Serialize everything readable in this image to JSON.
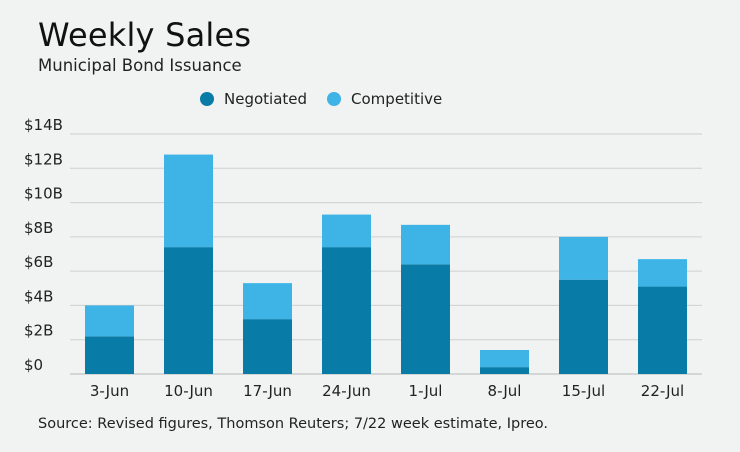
{
  "chart_data": {
    "type": "bar",
    "stacked": true,
    "title": "Weekly Sales",
    "subtitle": "Municipal Bond Issuance",
    "categories": [
      "3-Jun",
      "10-Jun",
      "17-Jun",
      "24-Jun",
      "1-Jul",
      "8-Jul",
      "15-Jul",
      "22-Jul"
    ],
    "series": [
      {
        "name": "Negotiated",
        "color": "#087ba7",
        "values": [
          2.2,
          7.4,
          3.2,
          7.4,
          6.4,
          0.4,
          5.5,
          5.1
        ]
      },
      {
        "name": "Competitive",
        "color": "#3db3e6",
        "values": [
          1.8,
          5.4,
          2.1,
          1.9,
          2.3,
          1.0,
          2.5,
          1.6
        ]
      }
    ],
    "ylim": [
      0,
      14
    ],
    "yticks": [
      0,
      2,
      4,
      6,
      8,
      10,
      12,
      14
    ],
    "ytick_labels": [
      "$0",
      "$2B",
      "$4B",
      "$6B",
      "$8B",
      "$10B",
      "$12B",
      "$14B"
    ],
    "grid": true,
    "legend_position": "top-center",
    "source": "Source: Revised figures, Thomson Reuters; 7/22 week estimate, Ipreo."
  }
}
